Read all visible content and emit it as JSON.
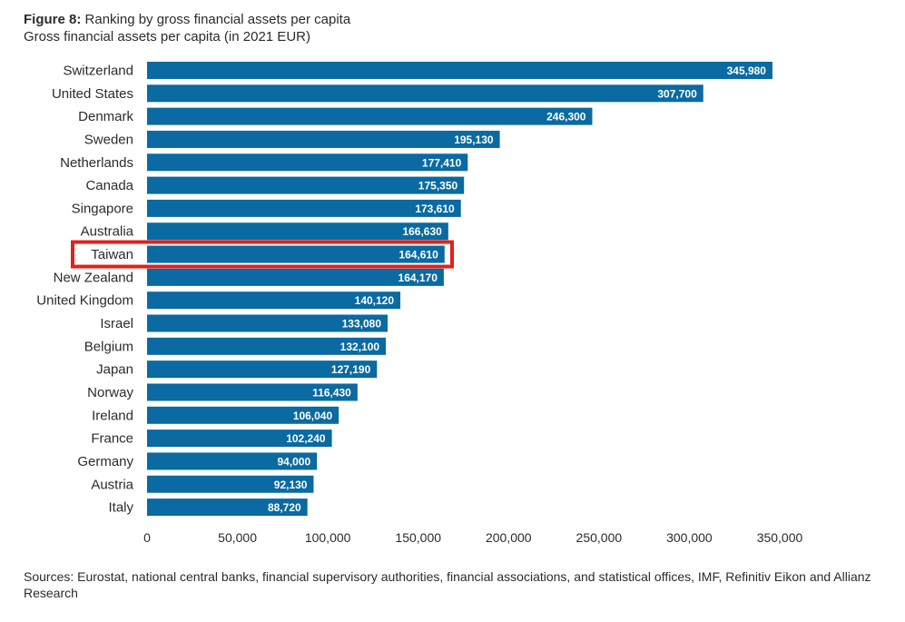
{
  "figure": {
    "label": "Figure 8:",
    "title": "Ranking by gross financial assets per capita",
    "subtitle": "Gross financial assets per capita (in 2021 EUR)"
  },
  "sources": "Sources: Eurostat, national central banks, financial supervisory authorities, financial associations, and statistical offices, IMF, Refinitiv Eikon and Allianz Research",
  "colors": {
    "bar": "#0a6aa1",
    "highlight": "#e3201b",
    "text": "#2b2b2b",
    "bar_label": "#ffffff"
  },
  "chart_data": {
    "type": "bar",
    "orientation": "horizontal",
    "categories": [
      "Switzerland",
      "United States",
      "Denmark",
      "Sweden",
      "Netherlands",
      "Canada",
      "Singapore",
      "Australia",
      "Taiwan",
      "New Zealand",
      "United Kingdom",
      "Israel",
      "Belgium",
      "Japan",
      "Norway",
      "Ireland",
      "France",
      "Germany",
      "Austria",
      "Italy"
    ],
    "values": [
      345980,
      307700,
      246300,
      195130,
      177410,
      175350,
      173610,
      166630,
      164610,
      164170,
      140120,
      133080,
      132100,
      127190,
      116430,
      106040,
      102240,
      94000,
      92130,
      88720
    ],
    "value_labels": [
      "345,980",
      "307,700",
      "246,300",
      "195,130",
      "177,410",
      "175,350",
      "173,610",
      "166,630",
      "164,610",
      "164,170",
      "140,120",
      "133,080",
      "132,100",
      "127,190",
      "116,430",
      "106,040",
      "102,240",
      "94,000",
      "92,130",
      "88,720"
    ],
    "xlim": [
      0,
      350000
    ],
    "xticks": [
      0,
      50000,
      100000,
      150000,
      200000,
      250000,
      300000,
      350000
    ],
    "xtick_labels": [
      "0",
      "50,000",
      "100,000",
      "150,000",
      "200,000",
      "250,000",
      "300,000",
      "350,000"
    ],
    "highlighted_category": "Taiwan",
    "grid": false
  }
}
